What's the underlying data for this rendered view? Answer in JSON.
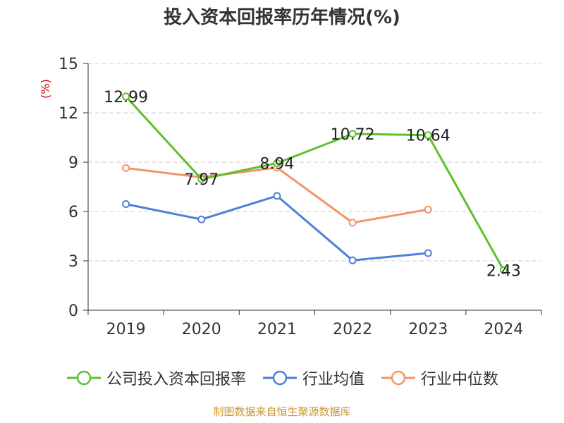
{
  "title": "投入资本回报率历年情况(%)",
  "source": "制图数据来自恒生聚源数据库",
  "chart_data": {
    "type": "line",
    "title": "投入资本回报率历年情况(%)",
    "ylabel": "(%)",
    "xlabel": "",
    "categories": [
      "2019",
      "2020",
      "2021",
      "2022",
      "2023",
      "2024"
    ],
    "ylim": [
      0,
      15
    ],
    "yticks": [
      0,
      3,
      6,
      9,
      12,
      15
    ],
    "grid": true,
    "legend_position": "bottom",
    "series": [
      {
        "name": "公司投入资本回报率",
        "color": "#5cc12b",
        "values": [
          12.99,
          7.97,
          8.94,
          10.72,
          10.64,
          2.43
        ],
        "value_labels": [
          "12.99",
          "7.97",
          "8.94",
          "10.72",
          "10.64",
          "2.43"
        ]
      },
      {
        "name": "行业均值",
        "color": "#4f7fd8",
        "values": [
          6.45,
          5.52,
          6.95,
          3.03,
          3.47,
          null
        ]
      },
      {
        "name": "行业中位数",
        "color": "#f49466",
        "values": [
          8.64,
          8.08,
          8.67,
          5.32,
          6.12,
          null
        ]
      }
    ]
  }
}
